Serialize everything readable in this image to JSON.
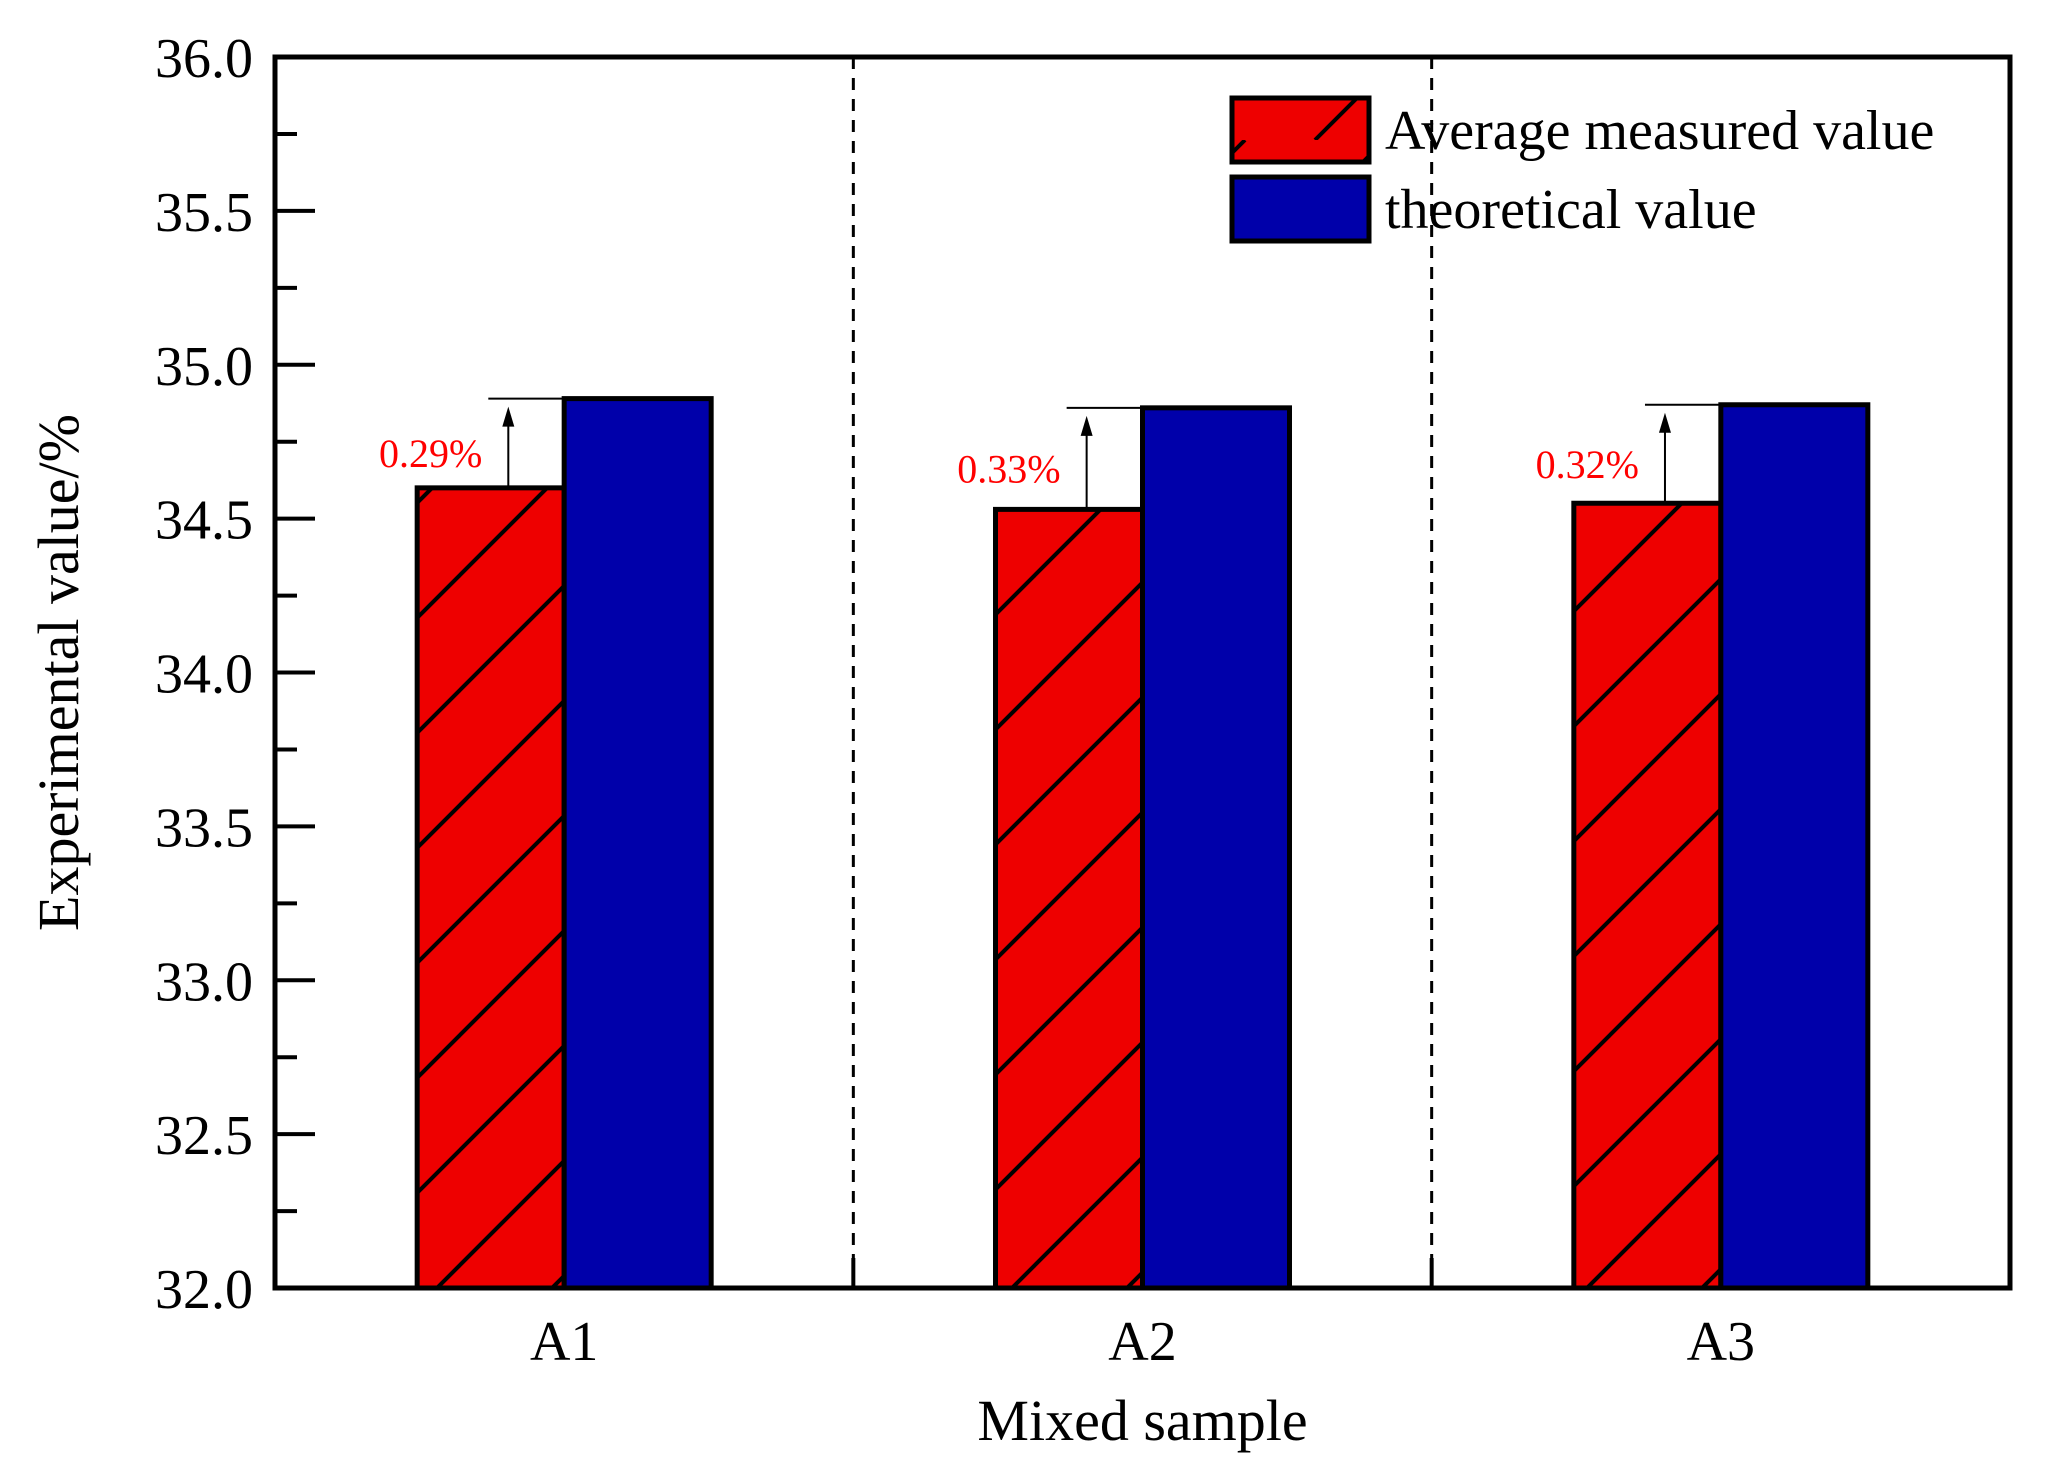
{
  "chart_data": {
    "type": "bar",
    "title": "",
    "xlabel": "Mixed sample",
    "ylabel": "Experimental value/%",
    "ylim": [
      32.0,
      36.0
    ],
    "yticks": [
      "32.0",
      "32.5",
      "33.0",
      "33.5",
      "34.0",
      "34.5",
      "35.0",
      "35.5",
      "36.0"
    ],
    "y_minor_step": 0.25,
    "categories": [
      "A1",
      "A2",
      "A3"
    ],
    "series": [
      {
        "name": "Average measured value",
        "values": [
          34.6,
          34.53,
          34.55
        ],
        "color": "#ee0000",
        "pattern": "diagonal-hatch"
      },
      {
        "name": "theoretical value",
        "values": [
          34.89,
          34.86,
          34.87
        ],
        "color": "#0000aa",
        "pattern": "solid"
      }
    ],
    "annotations": [
      {
        "category": "A1",
        "text": "0.29%",
        "color": "#ff0000"
      },
      {
        "category": "A2",
        "text": "0.33%",
        "color": "#ff0000"
      },
      {
        "category": "A3",
        "text": "0.32%",
        "color": "#ff0000"
      }
    ],
    "separators": "dashed vertical lines between categories",
    "legend": "top-right",
    "grid": false
  }
}
